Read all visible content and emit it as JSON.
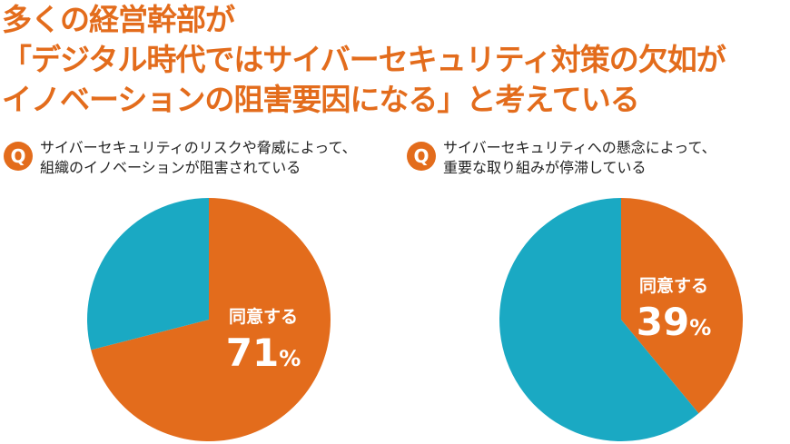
{
  "headline": {
    "line1": "多くの経営幹部が",
    "line2": "「デジタル時代ではサイバーセキュリティ対策の欠如が",
    "line3": "イノベーションの阻害要因になる」と考えている"
  },
  "colors": {
    "agree": "#e36c1c",
    "other": "#1aa9c3",
    "accent": "#e36c1c"
  },
  "question_badge": "Q",
  "chart_data": [
    {
      "type": "pie",
      "question_line1": "サイバーセキュリティのリスクや脅威によって、",
      "question_line2": "組織のイノベーションが阻害されている",
      "slices": [
        {
          "label": "同意する",
          "value": 71,
          "display": "71",
          "unit": "%",
          "color": "#e36c1c"
        },
        {
          "label": "",
          "value": 29,
          "color": "#1aa9c3"
        }
      ]
    },
    {
      "type": "pie",
      "question_line1": "サイバーセキュリティへの懸念によって、",
      "question_line2": "重要な取り組みが停滞している",
      "slices": [
        {
          "label": "同意する",
          "value": 39,
          "display": "39",
          "unit": "%",
          "color": "#e36c1c"
        },
        {
          "label": "",
          "value": 61,
          "color": "#1aa9c3"
        }
      ]
    }
  ]
}
